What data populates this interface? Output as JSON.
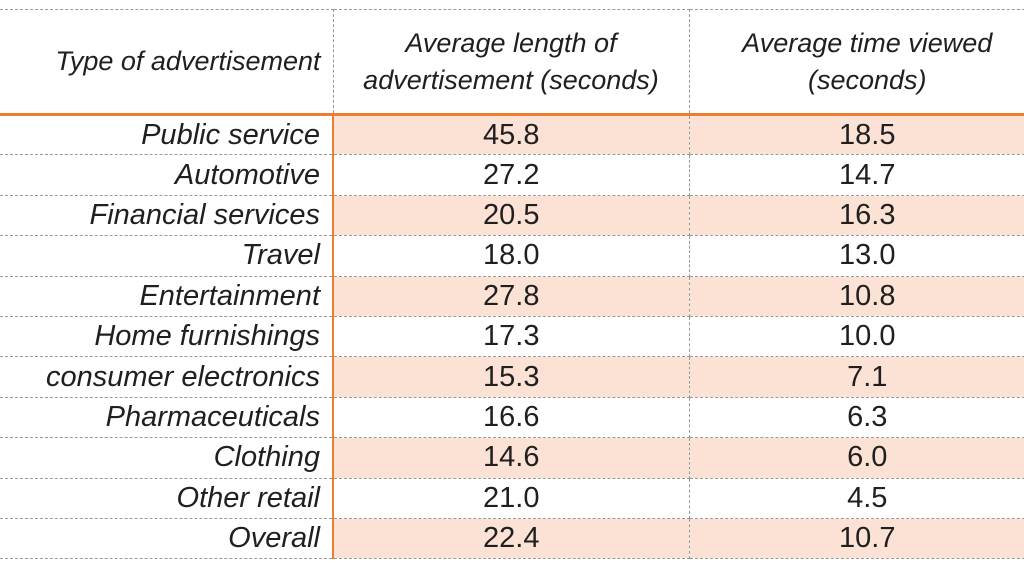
{
  "colors": {
    "accent": "#ED7D31",
    "row_shade": "#FBE2D5",
    "grid": "#999999",
    "text": "#1F1F1F",
    "background": "#FFFFFF"
  },
  "chart_data": {
    "type": "table",
    "columns": [
      "Type of advertisement",
      "Average length of advertisement (seconds)",
      "Average time viewed (seconds)"
    ],
    "rows": [
      {
        "type": "Public service",
        "avg_length": "45.8",
        "avg_time_viewed": "18.5",
        "shaded": true
      },
      {
        "type": "Automotive",
        "avg_length": "27.2",
        "avg_time_viewed": "14.7",
        "shaded": false
      },
      {
        "type": "Financial services",
        "avg_length": "20.5",
        "avg_time_viewed": "16.3",
        "shaded": true
      },
      {
        "type": "Travel",
        "avg_length": "18.0",
        "avg_time_viewed": "13.0",
        "shaded": false
      },
      {
        "type": "Entertainment",
        "avg_length": "27.8",
        "avg_time_viewed": "10.8",
        "shaded": true
      },
      {
        "type": "Home furnishings",
        "avg_length": "17.3",
        "avg_time_viewed": "10.0",
        "shaded": false
      },
      {
        "type": "consumer electronics",
        "avg_length": "15.3",
        "avg_time_viewed": "7.1",
        "shaded": true
      },
      {
        "type": "Pharmaceuticals",
        "avg_length": "16.6",
        "avg_time_viewed": "6.3",
        "shaded": false
      },
      {
        "type": "Clothing",
        "avg_length": "14.6",
        "avg_time_viewed": "6.0",
        "shaded": true
      },
      {
        "type": "Other retail",
        "avg_length": "21.0",
        "avg_time_viewed": "4.5",
        "shaded": false
      },
      {
        "type": "Overall",
        "avg_length": "22.4",
        "avg_time_viewed": "10.7",
        "shaded": true
      }
    ]
  }
}
